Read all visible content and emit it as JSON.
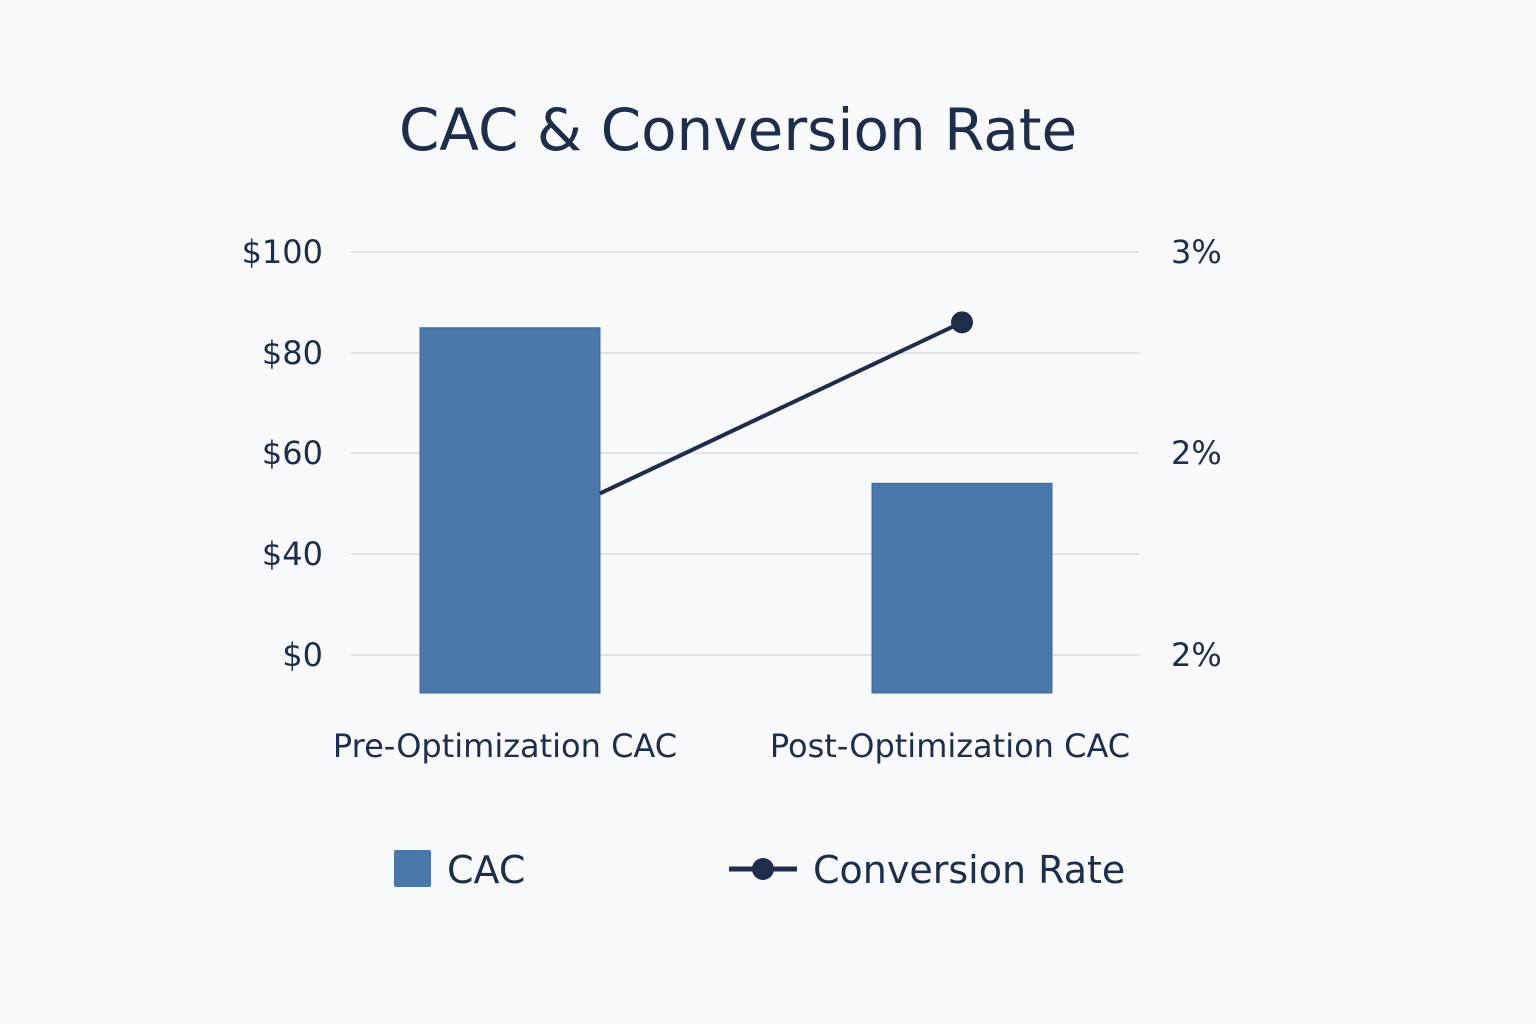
{
  "chart_data": {
    "type": "bar",
    "title": "CAC & Conversion Rate",
    "categories": [
      "Pre-Optimization CAC",
      "Post-Optimization CAC"
    ],
    "series": [
      {
        "name": "CAC",
        "type": "bar",
        "axis": "left",
        "values": [
          85,
          54
        ],
        "color": "#4a78aa"
      },
      {
        "name": "Conversion Rate",
        "type": "line",
        "axis": "right",
        "values": [
          1.9,
          2.65
        ],
        "color": "#1e2d4a"
      }
    ],
    "y_left": {
      "ticks": [
        0,
        40,
        60,
        80,
        100
      ],
      "tick_labels": [
        "$0",
        "$40",
        "$60",
        "$80",
        "$100"
      ]
    },
    "y_right": {
      "ticks": [
        1.5,
        2,
        3
      ],
      "tick_labels": [
        "2%",
        "2%",
        "3%"
      ]
    },
    "grid": true,
    "legend_position": "bottom"
  }
}
